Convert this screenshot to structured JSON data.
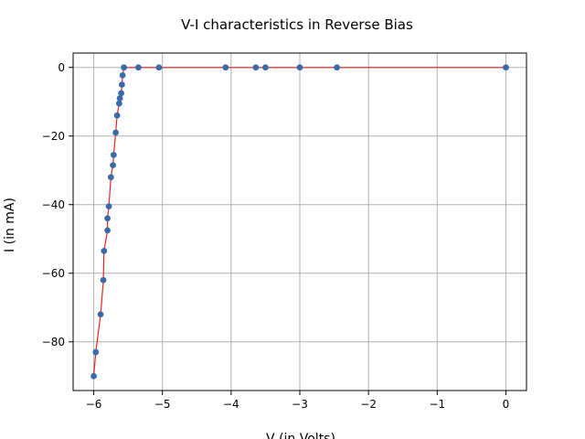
{
  "chart_data": {
    "type": "scatter",
    "title": "V-I characteristics in Reverse Bias",
    "xlabel": "V (in Volts)",
    "ylabel": "I (in mA)",
    "xlim": [
      -6.3,
      0.3
    ],
    "ylim": [
      -94.2,
      4.2
    ],
    "x_ticks": [
      -6,
      -5,
      -4,
      -3,
      -2,
      -1,
      0
    ],
    "x_tick_labels": [
      "−6",
      "−5",
      "−4",
      "−3",
      "−2",
      "−1",
      "0"
    ],
    "y_ticks": [
      -80,
      -60,
      -40,
      -20,
      0
    ],
    "y_tick_labels": [
      "−80",
      "−60",
      "−40",
      "−20",
      "0"
    ],
    "grid": true,
    "line_color": "#e8231e",
    "marker_color": "#3b6aa8",
    "series": [
      {
        "x": [
          0,
          -2.46,
          -3.0,
          -3.5,
          -3.64,
          -4.08,
          -5.05,
          -5.35,
          -5.56,
          -5.58,
          -5.59,
          -5.6,
          -5.62,
          -5.63,
          -5.66,
          -5.68,
          -5.71,
          -5.72,
          -5.75,
          -5.78,
          -5.8,
          -5.8,
          -5.85,
          -5.86,
          -5.9,
          -5.97,
          -6.0
        ],
        "y": [
          0,
          0,
          0,
          0,
          0,
          0,
          0,
          0,
          0,
          -2.3,
          -5,
          -7.5,
          -9,
          -10.5,
          -14,
          -19,
          -25.5,
          -28.5,
          -32,
          -40.5,
          -44,
          -47.5,
          -53.5,
          -62,
          -72,
          -83,
          -90
        ]
      }
    ]
  }
}
